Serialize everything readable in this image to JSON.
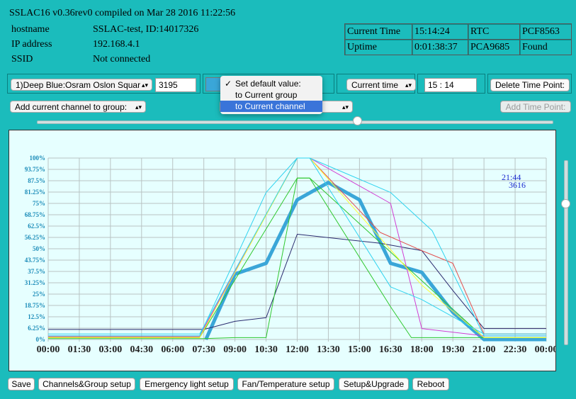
{
  "header": {
    "title": "SSLAC16 v0.36rev0 compiled on Mar 28 2016 11:22:56",
    "info": [
      {
        "label": "hostname",
        "value": "SSLAC-test, ID:14017326"
      },
      {
        "label": "IP address",
        "value": "192.168.4.1"
      },
      {
        "label": "SSID",
        "value": "Not connected"
      }
    ]
  },
  "status": {
    "rows": [
      [
        "Current Time",
        "15:14:24",
        "RTC",
        "PCF8563"
      ],
      [
        "Uptime",
        "0:01:38:37",
        "PCA9685",
        "Found"
      ]
    ]
  },
  "controls": {
    "channel_select": "1)Deep Blue:Osram Oslon Squar",
    "channel_value": "3195",
    "color_swatch": "#3aa6d8",
    "time_select": "Current time",
    "time_input": "15 : 14",
    "delete_button": "Delete Time Point:",
    "group_select": "Add current channel to group:",
    "add_button": "Add Time Point:"
  },
  "dropdown_menu": {
    "items": [
      {
        "label": "Set default value:",
        "checked": true,
        "highlighted": false
      },
      {
        "label": "to Current group",
        "checked": false,
        "highlighted": false
      },
      {
        "label": "to Current channel",
        "checked": false,
        "highlighted": true
      }
    ]
  },
  "chart_data": {
    "type": "line",
    "y_ticks": [
      "0%",
      "6.25%",
      "12.5%",
      "18.75%",
      "25%",
      "31.25%",
      "37.5%",
      "43.75%",
      "50%",
      "56.25%",
      "62.5%",
      "68.75%",
      "75%",
      "81.25%",
      "87.5%",
      "93.75%",
      "100%"
    ],
    "x_ticks": [
      "00:00",
      "01:30",
      "03:00",
      "04:30",
      "06:00",
      "07:30",
      "09:00",
      "10:30",
      "12:00",
      "13:30",
      "15:00",
      "16:30",
      "18:00",
      "19:30",
      "21:00",
      "22:30",
      "00:00"
    ],
    "ylim": [
      0,
      100
    ],
    "xlim": [
      0,
      24
    ],
    "annotation_time": "21:44",
    "annotation_value": "3616",
    "series": [
      {
        "color": "#3aa6d8",
        "width": 5,
        "points": [
          [
            7.6,
            0
          ],
          [
            9,
            36
          ],
          [
            10.5,
            42
          ],
          [
            12,
            77
          ],
          [
            13.5,
            86.5
          ],
          [
            15,
            77
          ],
          [
            16.5,
            42
          ],
          [
            18,
            37
          ],
          [
            19.5,
            15
          ],
          [
            21,
            0
          ],
          [
            24,
            0
          ]
        ]
      },
      {
        "color": "#2a2a6e",
        "width": 1,
        "points": [
          [
            0,
            5.5
          ],
          [
            7.5,
            5.5
          ],
          [
            9,
            10
          ],
          [
            10.5,
            12
          ],
          [
            12,
            58
          ],
          [
            16,
            53
          ],
          [
            18,
            49
          ],
          [
            19.5,
            27
          ],
          [
            21,
            6
          ],
          [
            24,
            6
          ]
        ]
      },
      {
        "color": "#2ec82e",
        "width": 1,
        "points": [
          [
            0,
            0.5
          ],
          [
            7.5,
            0.5
          ],
          [
            9,
            1
          ],
          [
            10.5,
            1
          ],
          [
            12,
            89
          ],
          [
            12.6,
            89
          ],
          [
            16.5,
            18
          ],
          [
            17.5,
            1
          ],
          [
            24,
            1
          ]
        ]
      },
      {
        "color": "#2ec82e",
        "width": 1,
        "points": [
          [
            0,
            1
          ],
          [
            7.3,
            1
          ],
          [
            12,
            89
          ],
          [
            12.6,
            89
          ],
          [
            21,
            1
          ],
          [
            24,
            1
          ]
        ]
      },
      {
        "color": "#e24e4e",
        "width": 1,
        "points": [
          [
            0,
            1.5
          ],
          [
            7.3,
            1.5
          ],
          [
            12,
            100
          ],
          [
            12.6,
            100
          ],
          [
            16,
            59
          ],
          [
            18,
            49
          ],
          [
            19.5,
            42
          ],
          [
            21,
            3
          ],
          [
            24,
            3
          ]
        ]
      },
      {
        "color": "#d23cd2",
        "width": 1,
        "points": [
          [
            0,
            2
          ],
          [
            7.3,
            2
          ],
          [
            12,
            100
          ],
          [
            12.6,
            100
          ],
          [
            16.5,
            75
          ],
          [
            18,
            6
          ],
          [
            21,
            2
          ],
          [
            24,
            2
          ]
        ]
      },
      {
        "color": "#ffff33",
        "width": 1,
        "points": [
          [
            0,
            1
          ],
          [
            7.3,
            1
          ],
          [
            12,
            100
          ],
          [
            12.6,
            100
          ],
          [
            18,
            30
          ],
          [
            21,
            1
          ],
          [
            24,
            1
          ]
        ]
      },
      {
        "color": "#2fd3ef",
        "width": 1,
        "points": [
          [
            0,
            2
          ],
          [
            7.3,
            2
          ],
          [
            10.5,
            81
          ],
          [
            12,
            100
          ],
          [
            12.6,
            100
          ],
          [
            16.5,
            81
          ],
          [
            18.5,
            60
          ],
          [
            21,
            2
          ],
          [
            24,
            2
          ]
        ]
      },
      {
        "color": "#2fd3ef",
        "width": 1,
        "points": [
          [
            0,
            3
          ],
          [
            7.3,
            3
          ],
          [
            12,
            100
          ],
          [
            12.6,
            100
          ],
          [
            16.5,
            29
          ],
          [
            18,
            22
          ],
          [
            21,
            3
          ],
          [
            24,
            3
          ]
        ]
      }
    ]
  },
  "footer": {
    "buttons": [
      "Save",
      "Channels&Group setup",
      "Emergency light setup",
      "Fan/Temperature setup",
      "Setup&Upgrade",
      "Reboot"
    ]
  }
}
